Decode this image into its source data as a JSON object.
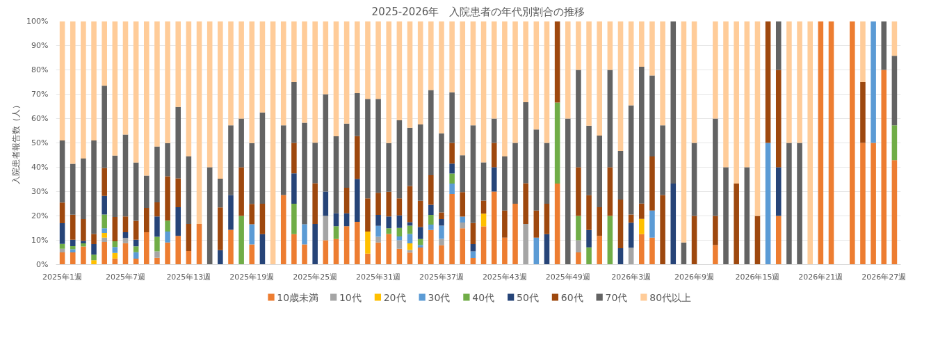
{
  "chart_data": {
    "type": "bar",
    "stacked": true,
    "title": "2025-2026年　入院患者の年代別割合の推移",
    "ylabel": "入院患者報告数（人）",
    "categories": [
      "2025年1週",
      null,
      null,
      null,
      null,
      null,
      "2025年7週",
      null,
      null,
      null,
      null,
      null,
      "2025年13週",
      null,
      null,
      null,
      null,
      null,
      "2025年19週",
      null,
      null,
      null,
      null,
      null,
      "2025年25週",
      null,
      null,
      null,
      null,
      null,
      "2025年31週",
      null,
      null,
      null,
      null,
      null,
      "2025年37週",
      null,
      null,
      null,
      null,
      null,
      "2025年43週",
      null,
      null,
      null,
      null,
      null,
      "2025年49週",
      null,
      null,
      null,
      null,
      null,
      "2026年3週",
      null,
      null,
      null,
      null,
      null,
      "2026年9週",
      null,
      null,
      null,
      null,
      null,
      "2026年15週",
      null,
      null,
      null,
      null,
      null,
      "2026年21週",
      null,
      null,
      null,
      null,
      null,
      "2026年27週",
      null
    ],
    "ylim": [
      0,
      100
    ],
    "yticks": [
      {
        "value": 0,
        "label": "0%"
      },
      {
        "value": 10,
        "label": "10%"
      },
      {
        "value": 20,
        "label": "20%"
      },
      {
        "value": 30,
        "label": "30%"
      },
      {
        "value": 40,
        "label": "40%"
      },
      {
        "value": 50,
        "label": "50%"
      },
      {
        "value": 60,
        "label": "60%"
      },
      {
        "value": 70,
        "label": "70%"
      },
      {
        "value": 80,
        "label": "80%"
      },
      {
        "value": 90,
        "label": "90%"
      },
      {
        "value": 100,
        "label": "100%"
      }
    ],
    "grid": "y",
    "legend": "bottom",
    "series": [
      {
        "name": "10歳未満",
        "color": "#ed7d31",
        "values": [
          5,
          5,
          7.4,
          0,
          9.3,
          2.5,
          8.8,
          2.4,
          13.3,
          2.8,
          9.1,
          11.8,
          5.6,
          16.7,
          0,
          0,
          14.3,
          0,
          8.3,
          0,
          0,
          28.6,
          12.5,
          8.3,
          0,
          10,
          10.5,
          15.8,
          17.6,
          4.5,
          9.1,
          12.6,
          6.5,
          4.9,
          7.0,
          14.2,
          7.9,
          29.0,
          14.9,
          2.7,
          15.7,
          30,
          11.1,
          25,
          0,
          0,
          0,
          33.3,
          0,
          5,
          0,
          11.8,
          0,
          0,
          0,
          12.5,
          11.1,
          0,
          0,
          0,
          0,
          null,
          8,
          0,
          0,
          0,
          0,
          0,
          20,
          0,
          0,
          0,
          100,
          100,
          null,
          100,
          50,
          50,
          80,
          42.9
        ]
      },
      {
        "name": "10代",
        "color": "#a5a5a5",
        "values": [
          1.5,
          0,
          0,
          0,
          1.8,
          0,
          2.1,
          0,
          0,
          2.6,
          0,
          0,
          0,
          0,
          0,
          0,
          0,
          0,
          0,
          0,
          0,
          0,
          0,
          0,
          0,
          10,
          0,
          0,
          0,
          0,
          2.3,
          0,
          3.5,
          1.1,
          0,
          0,
          2.7,
          0,
          2.4,
          0,
          0,
          0,
          0,
          0,
          16.7,
          0,
          0,
          0,
          0,
          5,
          0,
          0,
          0,
          0,
          6.9,
          0,
          0,
          0,
          0,
          0,
          0,
          null,
          0,
          0,
          0,
          0,
          0,
          0,
          0,
          0,
          0,
          0,
          0,
          0,
          null,
          0,
          0,
          0,
          0,
          0
        ]
      },
      {
        "name": "20代",
        "color": "#ffc000",
        "values": [
          0,
          0,
          0,
          1.8,
          1.9,
          2.3,
          0,
          0,
          0,
          0,
          0,
          0,
          0,
          0,
          0,
          0,
          0,
          0,
          0,
          0,
          0,
          0,
          0,
          0,
          0,
          0,
          0,
          0,
          0,
          9.1,
          0,
          0,
          0,
          2.7,
          0,
          0,
          0,
          0,
          0,
          0,
          5.2,
          0,
          0,
          0,
          0,
          0,
          0,
          0,
          0,
          0,
          0,
          0,
          0,
          0,
          0,
          6.3,
          0,
          0,
          0,
          0,
          0,
          null,
          0,
          0,
          0,
          0,
          0,
          0,
          0,
          0,
          0,
          0,
          0,
          0,
          null,
          0,
          0,
          0,
          0,
          0
        ]
      },
      {
        "name": "30代",
        "color": "#5b9bd5",
        "values": [
          0,
          1.3,
          0,
          0,
          1.9,
          2.4,
          0,
          2.7,
          0,
          0,
          4.5,
          0,
          0,
          0,
          0,
          0,
          0,
          0,
          8.3,
          0,
          0,
          0,
          0,
          8.3,
          0,
          0,
          0,
          0,
          0,
          0,
          4.5,
          0,
          1.6,
          3.9,
          1.1,
          2.2,
          5.4,
          4.3,
          2.4,
          2.7,
          0,
          0,
          0,
          0,
          0,
          11.1,
          0,
          0,
          0,
          0,
          0,
          0,
          0,
          0,
          0,
          0,
          11.1,
          0,
          0,
          0,
          0,
          null,
          0,
          0,
          0,
          0,
          0,
          50,
          0,
          0,
          0,
          0,
          0,
          0,
          null,
          0,
          0,
          50,
          0,
          0
        ]
      },
      {
        "name": "40代",
        "color": "#70ad47",
        "values": [
          2,
          1.3,
          1.3,
          2.3,
          5.7,
          2.4,
          0,
          2.4,
          0,
          6,
          4.5,
          0,
          0,
          0,
          0,
          0,
          0,
          20,
          0,
          0,
          0,
          0,
          12.5,
          0,
          0,
          0,
          5.3,
          0,
          0,
          0,
          0,
          2.3,
          3.5,
          3.4,
          2.4,
          4.0,
          0,
          4.1,
          0,
          0,
          0,
          0,
          0,
          0,
          0,
          0,
          0,
          33.3,
          0,
          10,
          7.1,
          0,
          20,
          0,
          0,
          0,
          0,
          0,
          0,
          0,
          0,
          null,
          0,
          0,
          0,
          0,
          0,
          0,
          0,
          0,
          0,
          0,
          0,
          0,
          null,
          0,
          0,
          0,
          0,
          14.3
        ]
      },
      {
        "name": "50代",
        "color": "#264478",
        "values": [
          8.5,
          2.6,
          1.1,
          4.3,
          7.6,
          0,
          2.4,
          2.7,
          0,
          8.4,
          0,
          11.8,
          0,
          0,
          0,
          5.9,
          14.3,
          0,
          0,
          12.5,
          0,
          0,
          12.5,
          0,
          16.7,
          10,
          5.3,
          5.3,
          17.6,
          0,
          4.5,
          4.9,
          5.1,
          1.4,
          4.9,
          4.2,
          2.7,
          4.1,
          0,
          3.0,
          0,
          10,
          0,
          0,
          0,
          0,
          12.5,
          0,
          0,
          0,
          7.1,
          0,
          0,
          6.7,
          10.3,
          0,
          0,
          0,
          33.3,
          0,
          0,
          null,
          0,
          0,
          0,
          0,
          0,
          0,
          20,
          0,
          0,
          0,
          0,
          0,
          null,
          0,
          0,
          0,
          0,
          0
        ]
      },
      {
        "name": "60代",
        "color": "#9e480e",
        "values": [
          8.5,
          10.3,
          8.9,
          4.2,
          11.5,
          10,
          6.5,
          7.8,
          10,
          5.8,
          18.2,
          11.8,
          11.1,
          0,
          0,
          17.6,
          0,
          20,
          8.3,
          12.5,
          0,
          0,
          12.5,
          0,
          16.7,
          0,
          0,
          10.5,
          17.6,
          13.6,
          9.1,
          10.1,
          7.0,
          14.9,
          10.8,
          12.1,
          2.7,
          8.5,
          10.1,
          8.7,
          5.4,
          10,
          11.1,
          0,
          16.7,
          11.1,
          12.5,
          33.4,
          0,
          20,
          14.3,
          11.8,
          20,
          20,
          3.4,
          6.3,
          22.2,
          28.6,
          0,
          0,
          20,
          null,
          12,
          0,
          33.3,
          0,
          20,
          50,
          40,
          0,
          0,
          0,
          0,
          0,
          null,
          0,
          25,
          0,
          0,
          0
        ]
      },
      {
        "name": "70代",
        "color": "#636363",
        "values": [
          25.5,
          20.9,
          24.9,
          38.4,
          33.8,
          25.2,
          33.6,
          23.9,
          13.3,
          22.9,
          13.6,
          29.4,
          27.8,
          0,
          40,
          11.8,
          28.6,
          20,
          25,
          37.5,
          0,
          28.6,
          25,
          41.7,
          16.7,
          40,
          31.6,
          26.3,
          17.6,
          40.9,
          38.6,
          20,
          32.1,
          23.9,
          31.4,
          35.0,
          32.5,
          20.8,
          15.1,
          40.1,
          15.7,
          10,
          22.2,
          25,
          33.3,
          33.3,
          25,
          0,
          60,
          40,
          28.6,
          29.4,
          40,
          20,
          44.8,
          56.2,
          33.3,
          28.6,
          66.7,
          9.1,
          30,
          null,
          40,
          40,
          0,
          40,
          0,
          0,
          20,
          50,
          50,
          0,
          0,
          0,
          null,
          0,
          0,
          0,
          20,
          28.6
        ]
      },
      {
        "name": "80代以上",
        "color": "#ffcc99",
        "values": [
          49,
          58.6,
          56.4,
          49,
          26.5,
          55.2,
          46.6,
          58.1,
          63.4,
          51.5,
          50.1,
          35.2,
          55.5,
          83.3,
          60,
          64.7,
          42.8,
          40,
          50.1,
          37.5,
          100,
          42.8,
          25,
          41.7,
          49.9,
          30,
          47.3,
          42.1,
          29.6,
          31.9,
          31.9,
          50.1,
          40.7,
          43.8,
          42.4,
          28.3,
          46.1,
          29.2,
          55.1,
          42.8,
          58,
          40,
          55.6,
          50,
          33.3,
          44.5,
          50,
          0,
          40,
          20,
          42.9,
          47,
          20,
          53.3,
          34.6,
          18.7,
          22.3,
          42.8,
          0,
          90.9,
          50,
          null,
          40,
          60,
          66.7,
          60,
          80,
          0,
          0,
          50,
          50,
          100,
          0,
          0,
          null,
          0,
          25,
          0,
          0,
          14.2
        ]
      }
    ]
  }
}
